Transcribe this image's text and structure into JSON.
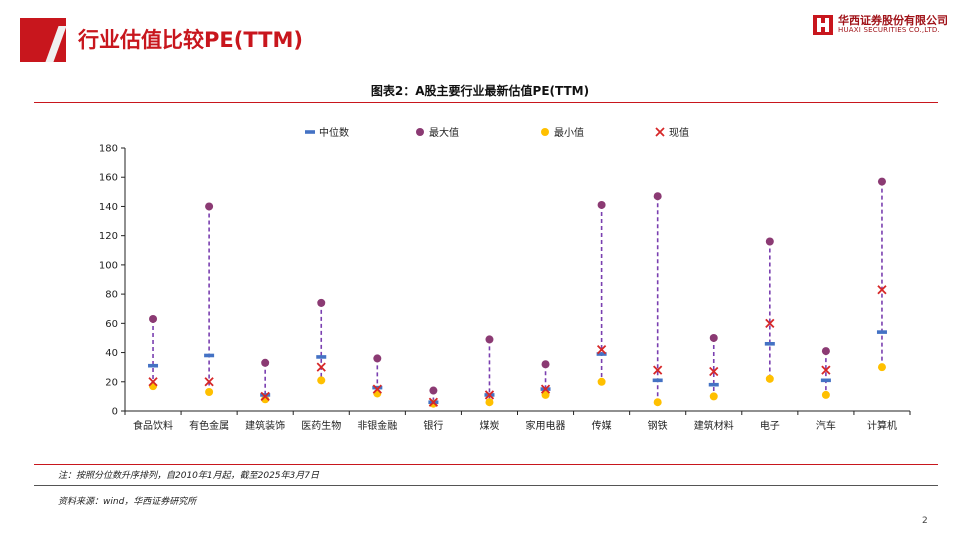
{
  "header": {
    "title": "行业估值比较PE(TTM)"
  },
  "logo": {
    "name_cn": "华西证券股份有限公司",
    "name_en": "HUAXI SECURITIES CO.,LTD."
  },
  "colors": {
    "median": "#4472c4",
    "max": "#8b3a73",
    "min": "#ffc000",
    "current": "#d62728",
    "brand": "#c8161d"
  },
  "chart_data": {
    "type": "scatter",
    "title": "图表2：A股主要行业最新估值PE(TTM)",
    "xlabel": "",
    "ylabel": "",
    "ylim": [
      0,
      180
    ],
    "yticks": [
      0,
      20,
      40,
      60,
      80,
      100,
      120,
      140,
      160,
      180
    ],
    "categories": [
      "食品饮料",
      "有色金属",
      "建筑装饰",
      "医药生物",
      "非银金融",
      "银行",
      "煤炭",
      "家用电器",
      "传媒",
      "钢铁",
      "建筑材料",
      "电子",
      "汽车",
      "计算机"
    ],
    "series": [
      {
        "name": "中位数",
        "marker": "dash",
        "values": [
          31,
          38,
          11,
          37,
          16,
          6,
          11,
          15,
          39,
          21,
          18,
          46,
          21,
          54
        ]
      },
      {
        "name": "最大值",
        "marker": "circle",
        "values": [
          63,
          140,
          33,
          74,
          36,
          14,
          49,
          32,
          141,
          147,
          50,
          116,
          41,
          157
        ]
      },
      {
        "name": "最小值",
        "marker": "circle",
        "values": [
          17,
          13,
          8,
          21,
          12,
          5,
          6,
          11,
          20,
          6,
          10,
          22,
          11,
          30
        ]
      },
      {
        "name": "现值",
        "marker": "x",
        "values": [
          20,
          20,
          10,
          30,
          15,
          6,
          11,
          15,
          42,
          28,
          27,
          60,
          28,
          83
        ]
      }
    ],
    "legend": "top"
  },
  "notes": {
    "note": "注：按照分位数升序排列，自2010年1月起，截至2025年3月7日",
    "source": "资料来源：wind，华西证券研究所"
  },
  "page_number": "2"
}
